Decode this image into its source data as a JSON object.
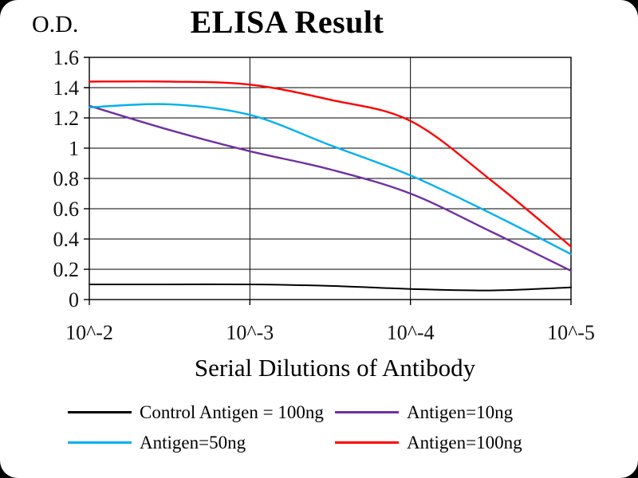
{
  "chart_data": {
    "type": "line",
    "title": "ELISA Result",
    "ylabel": "O.D.",
    "xlabel": "Serial Dilutions of Antibody",
    "x_tick_labels": [
      "10^-2",
      "10^-3",
      "10^-4",
      "10^-5"
    ],
    "x_tick_positions": [
      0,
      1,
      2,
      3
    ],
    "y_ticks": [
      0,
      0.2,
      0.4,
      0.6,
      0.8,
      1.0,
      1.2,
      1.4,
      1.6
    ],
    "y_tick_labels": [
      "0",
      "0.2",
      "0.4",
      "0.6",
      "0.8",
      "1",
      "1.2",
      "1.4",
      "1.6"
    ],
    "xlim": [
      0,
      3
    ],
    "ylim": [
      0,
      1.6
    ],
    "grid": true,
    "legend_position": "bottom",
    "x": [
      0,
      0.5,
      1,
      1.5,
      2,
      2.5,
      3
    ],
    "series": [
      {
        "name": "Control Antigen = 100ng",
        "color": "#000000",
        "values": [
          0.1,
          0.1,
          0.1,
          0.09,
          0.07,
          0.06,
          0.08
        ]
      },
      {
        "name": "Antigen=10ng",
        "color": "#7030A0",
        "values": [
          1.28,
          1.12,
          0.98,
          0.86,
          0.7,
          0.45,
          0.19
        ]
      },
      {
        "name": "Antigen=50ng",
        "color": "#00B0F0",
        "values": [
          1.27,
          1.29,
          1.22,
          1.02,
          0.82,
          0.57,
          0.3
        ]
      },
      {
        "name": "Antigen=100ng",
        "color": "#FF0000",
        "values": [
          1.44,
          1.44,
          1.42,
          1.32,
          1.18,
          0.79,
          0.35
        ]
      }
    ],
    "colors": {
      "background": "#FFFFFF",
      "frame": "#000000",
      "grid": "#000000"
    }
  }
}
